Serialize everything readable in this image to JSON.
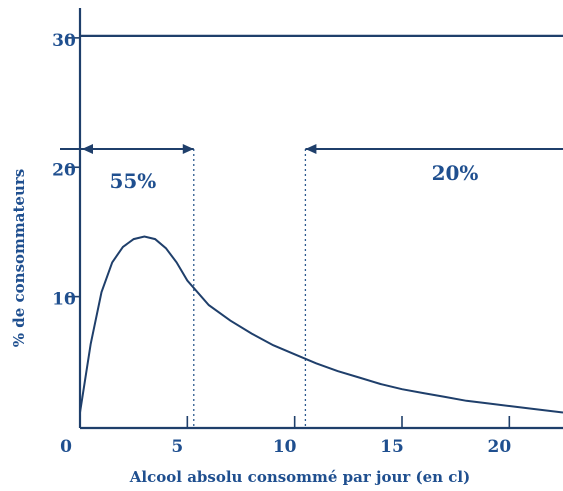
{
  "chart_data": {
    "type": "line",
    "title": "",
    "xlabel": "Alcool absolu consommé par jour (en cl)",
    "ylabel": "% de consommateurs",
    "xlim": [
      0,
      22.5
    ],
    "ylim": [
      0,
      32
    ],
    "x_ticks": [
      "0",
      "5",
      "10",
      "15",
      "20"
    ],
    "y_ticks": [
      "10",
      "20",
      "30"
    ],
    "grid": false,
    "series": [
      {
        "x": [
          0,
          0.5,
          1,
          1.5,
          2,
          2.5,
          3,
          3.5,
          4,
          4.5,
          5,
          6,
          7,
          8,
          9,
          10,
          11,
          12,
          13,
          14,
          15,
          16,
          17,
          18,
          19,
          20,
          21,
          22.5
        ],
        "values": [
          1.2,
          6.5,
          10.5,
          12.8,
          14.0,
          14.6,
          14.8,
          14.6,
          13.9,
          12.8,
          11.4,
          9.5,
          8.3,
          7.3,
          6.4,
          5.7,
          5.0,
          4.4,
          3.9,
          3.4,
          3.0,
          2.7,
          2.4,
          2.1,
          1.9,
          1.7,
          1.5,
          1.2
        ]
      }
    ],
    "annotations": [
      {
        "text": "55%",
        "from_x": 0,
        "to_x": 5.3,
        "direction": "left-right"
      },
      {
        "text": "20%",
        "from_x": 10.5,
        "to_x": 22.5,
        "direction": "left"
      }
    ]
  }
}
